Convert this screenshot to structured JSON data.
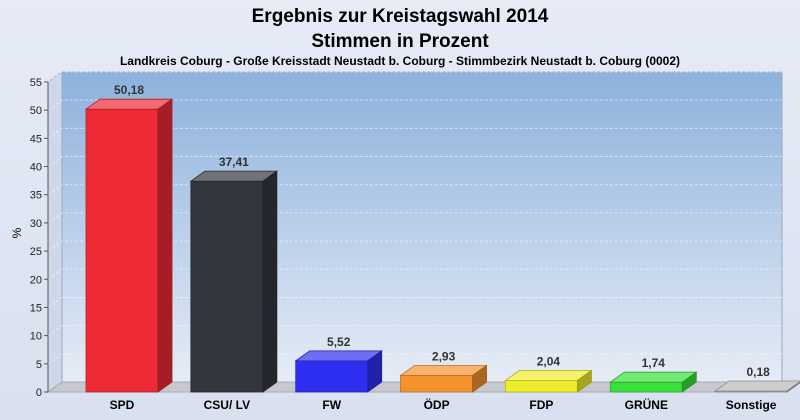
{
  "chart_data": {
    "type": "bar",
    "title": "Ergebnis zur Kreistagswahl 2014",
    "title_line2": "Stimmen in Prozent",
    "subtitle": "Landkreis Coburg - Große Kreisstadt Neustadt b. Coburg - Stimmbezirk Neustadt b. Coburg (0002)",
    "ylabel": "%",
    "xlabel": "",
    "ylim": [
      0,
      55
    ],
    "yticks": [
      0,
      5,
      10,
      15,
      20,
      25,
      30,
      35,
      40,
      45,
      50,
      55
    ],
    "grid": true,
    "categories": [
      "SPD",
      "CSU/ LV",
      "FW",
      "ÖDP",
      "FDP",
      "GRÜNE",
      "Sonstige"
    ],
    "values": [
      50.18,
      37.41,
      5.52,
      2.93,
      2.04,
      1.74,
      0.18
    ],
    "value_labels": [
      "50,18",
      "37,41",
      "5,52",
      "2,93",
      "2,04",
      "1,74",
      "0,18"
    ],
    "colors": [
      "#ee2a36",
      "#33363d",
      "#2f2ff2",
      "#f4922e",
      "#eded2c",
      "#3ae03a",
      "#b8b8b8"
    ]
  }
}
